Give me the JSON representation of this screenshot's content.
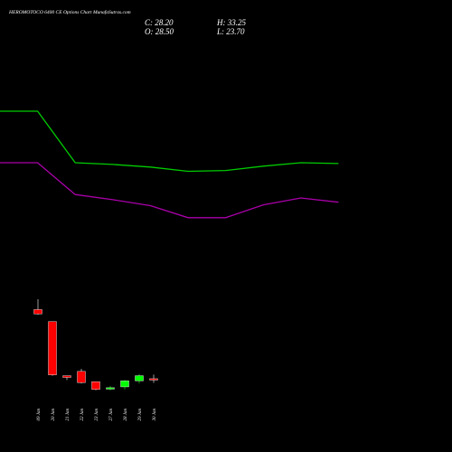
{
  "header": {
    "title": "HEROMOTOCO 6400 CE Options Chart MunafaSutras.com",
    "close": "C: 28.20",
    "high": "H: 33.25",
    "open": "O: 28.50",
    "low": "L: 23.70"
  },
  "colors": {
    "background": "#000000",
    "up": "#00ff00",
    "down": "#ff0000",
    "upper_band": "#00cc00",
    "lower_band": "#aa00aa"
  },
  "chart_data": {
    "type": "candlestick",
    "title": "HEROMOTOCO 6400 CE Options Chart MunafaSutras.com",
    "categories": [
      "09 Jan",
      "20 Jan",
      "21 Jan",
      "22 Jan",
      "23 Jan",
      "27 Jan",
      "28 Jan",
      "29 Jan",
      "30 Jan"
    ],
    "candles": [
      {
        "open": 109,
        "high": 121,
        "low": 103,
        "close": 104
      },
      {
        "open": 95,
        "high": 95,
        "low": 32,
        "close": 33
      },
      {
        "open": 32,
        "high": 32,
        "low": 27,
        "close": 30
      },
      {
        "open": 37,
        "high": 40,
        "low": 23,
        "close": 24
      },
      {
        "open": 25,
        "high": 25,
        "low": 15,
        "close": 16
      },
      {
        "open": 17,
        "high": 20,
        "low": 15,
        "close": 18
      },
      {
        "open": 19,
        "high": 27,
        "low": 16,
        "close": 26
      },
      {
        "open": 26,
        "high": 34,
        "low": 23,
        "close": 32
      },
      {
        "open": 28.5,
        "high": 33.25,
        "low": 23.7,
        "close": 28.2
      }
    ],
    "band_x": [
      0,
      1,
      2,
      3,
      4,
      5,
      6,
      7,
      8,
      9
    ],
    "upper_band": [
      340,
      340,
      280,
      278,
      275,
      270,
      271,
      276,
      280,
      279
    ],
    "lower_band": [
      280,
      280,
      243,
      237,
      230,
      216,
      216,
      231,
      239,
      234
    ],
    "ylim": [
      0,
      350
    ]
  }
}
